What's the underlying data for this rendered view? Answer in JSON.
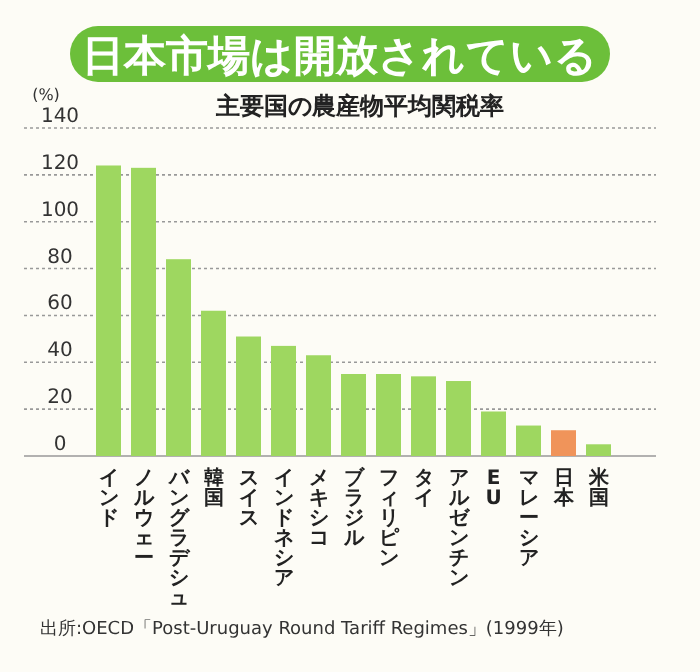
{
  "chart_data": {
    "type": "bar",
    "title": "日本市場は開放されている",
    "subtitle": "主要国の農産物平均関税率",
    "ylabel": "(%)",
    "categories": [
      "インド",
      "ノルウェー",
      "バングラデシュ",
      "韓国",
      "スイス",
      "インドネシア",
      "メキシコ",
      "ブラジル",
      "フィリピン",
      "タイ",
      "アルゼンチン",
      "EU",
      "マレーシア",
      "日本",
      "米国"
    ],
    "values": [
      124,
      123,
      84,
      62,
      51,
      47,
      43,
      35,
      35,
      34,
      32,
      19,
      13,
      11,
      5
    ],
    "colors": [
      "#9ed760",
      "#9ed760",
      "#9ed760",
      "#9ed760",
      "#9ed760",
      "#9ed760",
      "#9ed760",
      "#9ed760",
      "#9ed760",
      "#9ed760",
      "#9ed760",
      "#9ed760",
      "#9ed760",
      "#f0945a",
      "#9ed760"
    ],
    "ylim": [
      0,
      140
    ],
    "yticks": [
      0,
      20,
      40,
      60,
      80,
      100,
      120,
      140
    ],
    "grid": "y",
    "annotations": [
      "出所:OECD「Post-Uruguay Round Tariff Regimes」(1999年)"
    ]
  }
}
